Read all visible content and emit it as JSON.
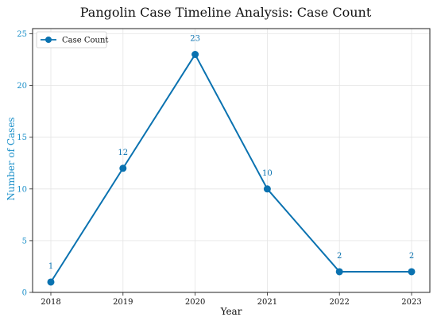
{
  "chart_data": {
    "type": "line",
    "title": "Pangolin Case Timeline Analysis: Case Count",
    "xlabel": "Year",
    "ylabel": "Number of Cases",
    "categories": [
      "2018",
      "2019",
      "2020",
      "2021",
      "2022",
      "2023"
    ],
    "series": [
      {
        "name": "Case Count",
        "values": [
          1,
          12,
          23,
          10,
          2,
          2
        ]
      }
    ],
    "ylim": [
      0,
      25.5
    ],
    "yticks": [
      0,
      5,
      10,
      15,
      20,
      25
    ],
    "grid": true,
    "legend_position": "top-left",
    "colors": {
      "line": "#0a72b0",
      "ylabel": "#1a8fc9",
      "ytick": "#1a8fc9",
      "grid": "#e4e4e4",
      "axis": "#222222"
    }
  }
}
